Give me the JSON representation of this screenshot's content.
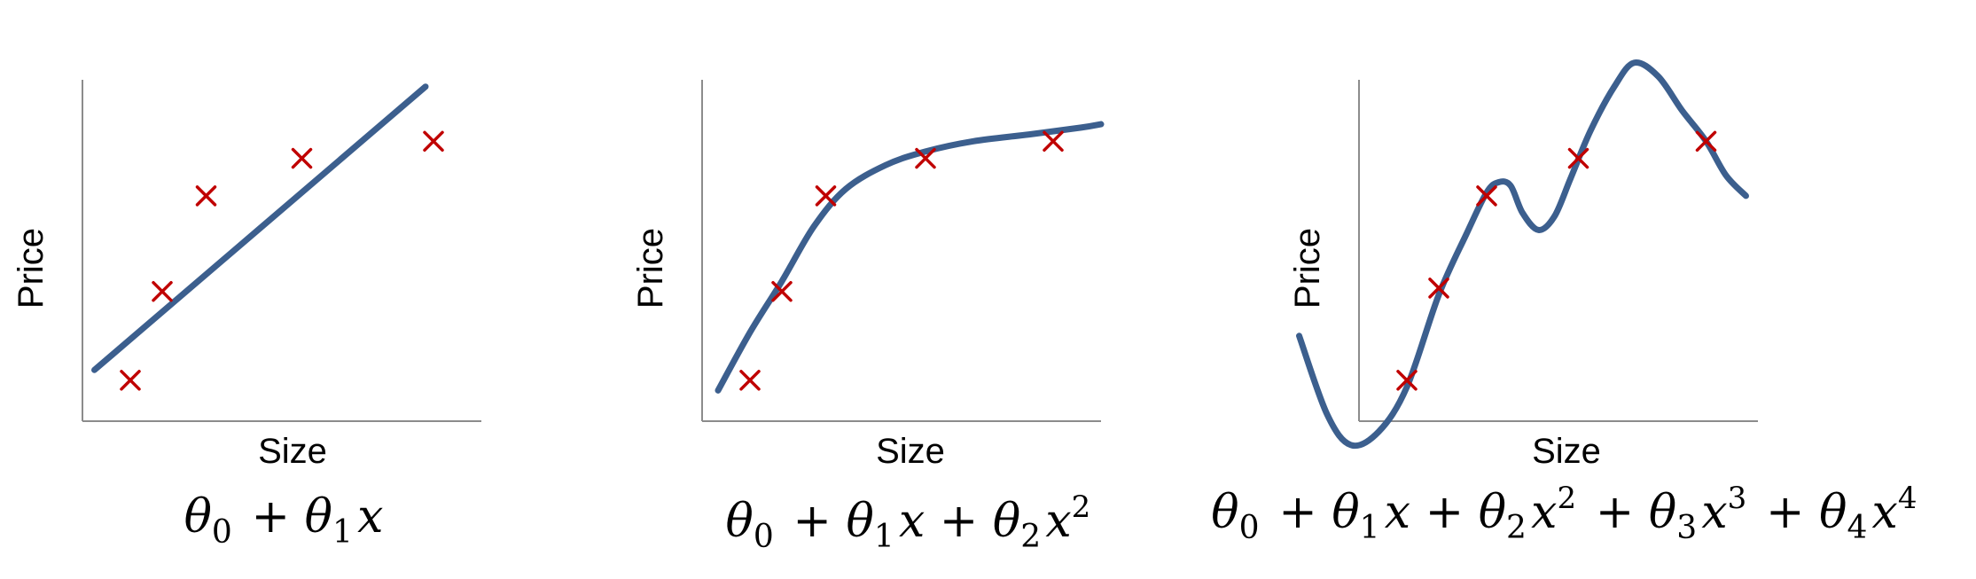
{
  "colors": {
    "fit_line": "#3c5f8e",
    "data_marker": "#c00000",
    "axis": "#8c8c8c"
  },
  "chart_data": [
    {
      "type": "line",
      "fit_kind": "linear",
      "xlabel": "Size",
      "ylabel": "Price",
      "formula": "θ0 + θ1x",
      "formula_parts": [
        {
          "t": "θ",
          "s": "0"
        },
        {
          "t": " + "
        },
        {
          "t": "θ",
          "s": "1"
        },
        {
          "t": "x"
        }
      ],
      "points": [
        [
          0.12,
          0.12
        ],
        [
          0.2,
          0.38
        ],
        [
          0.31,
          0.66
        ],
        [
          0.55,
          0.77
        ],
        [
          0.88,
          0.82
        ]
      ],
      "curve": [
        [
          0.03,
          0.15
        ],
        [
          0.86,
          0.98
        ]
      ]
    },
    {
      "type": "line",
      "fit_kind": "quadratic",
      "xlabel": "Size",
      "ylabel": "Price",
      "formula": "θ0 + θ1x + θ2x2",
      "formula_parts": [
        {
          "t": "θ",
          "s": "0"
        },
        {
          "t": " + "
        },
        {
          "t": "θ",
          "s": "1"
        },
        {
          "t": "x"
        },
        {
          "t": " + "
        },
        {
          "t": "θ",
          "s": "2"
        },
        {
          "t": "x",
          "p": "2"
        }
      ],
      "points": [
        [
          0.12,
          0.12
        ],
        [
          0.2,
          0.38
        ],
        [
          0.31,
          0.66
        ],
        [
          0.56,
          0.77
        ],
        [
          0.88,
          0.82
        ]
      ],
      "curve": [
        [
          0.04,
          0.09
        ],
        [
          0.12,
          0.26
        ],
        [
          0.2,
          0.41
        ],
        [
          0.28,
          0.57
        ],
        [
          0.36,
          0.68
        ],
        [
          0.46,
          0.75
        ],
        [
          0.56,
          0.79
        ],
        [
          0.68,
          0.82
        ],
        [
          0.82,
          0.84
        ],
        [
          0.95,
          0.86
        ],
        [
          1.0,
          0.87
        ]
      ]
    },
    {
      "type": "line",
      "fit_kind": "quartic",
      "xlabel": "Size",
      "ylabel": "Price",
      "formula": "θ0 + θ1x + θ2x2 + θ3x3 + θ4x4",
      "formula_parts": [
        {
          "t": "θ",
          "s": "0"
        },
        {
          "t": " + "
        },
        {
          "t": "θ",
          "s": "1"
        },
        {
          "t": "x"
        },
        {
          "t": " + "
        },
        {
          "t": "θ",
          "s": "2"
        },
        {
          "t": "x",
          "p": "2"
        },
        {
          "t": " + "
        },
        {
          "t": "θ",
          "s": "3"
        },
        {
          "t": "x",
          "p": "3"
        },
        {
          "t": " + "
        },
        {
          "t": "θ",
          "s": "4"
        },
        {
          "t": "x",
          "p": "4"
        }
      ],
      "points": [
        [
          0.12,
          0.12
        ],
        [
          0.2,
          0.39
        ],
        [
          0.32,
          0.66
        ],
        [
          0.55,
          0.77
        ],
        [
          0.87,
          0.82
        ]
      ],
      "curve": [
        [
          -0.15,
          0.25
        ],
        [
          -0.08,
          0.02
        ],
        [
          -0.02,
          -0.07
        ],
        [
          0.05,
          -0.03
        ],
        [
          0.12,
          0.1
        ],
        [
          0.2,
          0.37
        ],
        [
          0.27,
          0.55
        ],
        [
          0.32,
          0.67
        ],
        [
          0.35,
          0.7
        ],
        [
          0.38,
          0.69
        ],
        [
          0.41,
          0.61
        ],
        [
          0.45,
          0.56
        ],
        [
          0.49,
          0.6
        ],
        [
          0.53,
          0.71
        ],
        [
          0.58,
          0.85
        ],
        [
          0.64,
          0.98
        ],
        [
          0.69,
          1.05
        ],
        [
          0.75,
          1.01
        ],
        [
          0.81,
          0.91
        ],
        [
          0.87,
          0.82
        ],
        [
          0.92,
          0.72
        ],
        [
          0.97,
          0.66
        ]
      ]
    }
  ]
}
